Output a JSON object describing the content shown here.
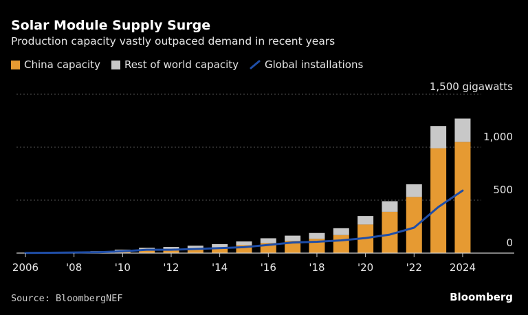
{
  "title": "Solar Module Supply Surge",
  "subtitle": "Production capacity vastly outpaced demand in recent years",
  "source": "Source: BloombergNEF",
  "brand": "Bloomberg",
  "colors": {
    "china": "#e69a32",
    "row": "#c8c8c8",
    "installs": "#1f4ea8",
    "grid": "#555555",
    "axis": "#cccccc"
  },
  "chart_data": {
    "type": "bar",
    "stacked": true,
    "categories": [
      "2006",
      "2007",
      "2008",
      "2009",
      "2010",
      "2011",
      "2012",
      "2013",
      "2014",
      "2015",
      "2016",
      "2017",
      "2018",
      "2019",
      "2020",
      "2021",
      "2022",
      "2023",
      "2024"
    ],
    "x_tick_labels": [
      "2006",
      "'08",
      "'10",
      "'12",
      "'14",
      "'16",
      "'18",
      "'20",
      "'22",
      "2024"
    ],
    "y_tick_labels": [
      "0",
      "500",
      "1,000",
      "1,500 gigawatts"
    ],
    "y_ticks": [
      0,
      500,
      1000,
      1500
    ],
    "ylim": [
      0,
      1500
    ],
    "grid": true,
    "legend_position": "top",
    "series": [
      {
        "name": "China capacity",
        "type": "bar",
        "values": [
          1,
          2,
          4,
          8,
          15,
          25,
          30,
          40,
          55,
          75,
          95,
          115,
          135,
          170,
          270,
          390,
          530,
          990,
          1050
        ]
      },
      {
        "name": "Rest of world capacity",
        "type": "bar",
        "values": [
          3,
          5,
          7,
          10,
          18,
          25,
          28,
          30,
          30,
          35,
          45,
          50,
          55,
          65,
          80,
          100,
          120,
          210,
          220
        ]
      },
      {
        "name": "Global installations",
        "type": "line",
        "values": [
          2,
          3,
          6,
          8,
          17,
          32,
          32,
          39,
          47,
          56,
          77,
          100,
          107,
          120,
          142,
          175,
          240,
          435,
          590
        ]
      }
    ]
  }
}
